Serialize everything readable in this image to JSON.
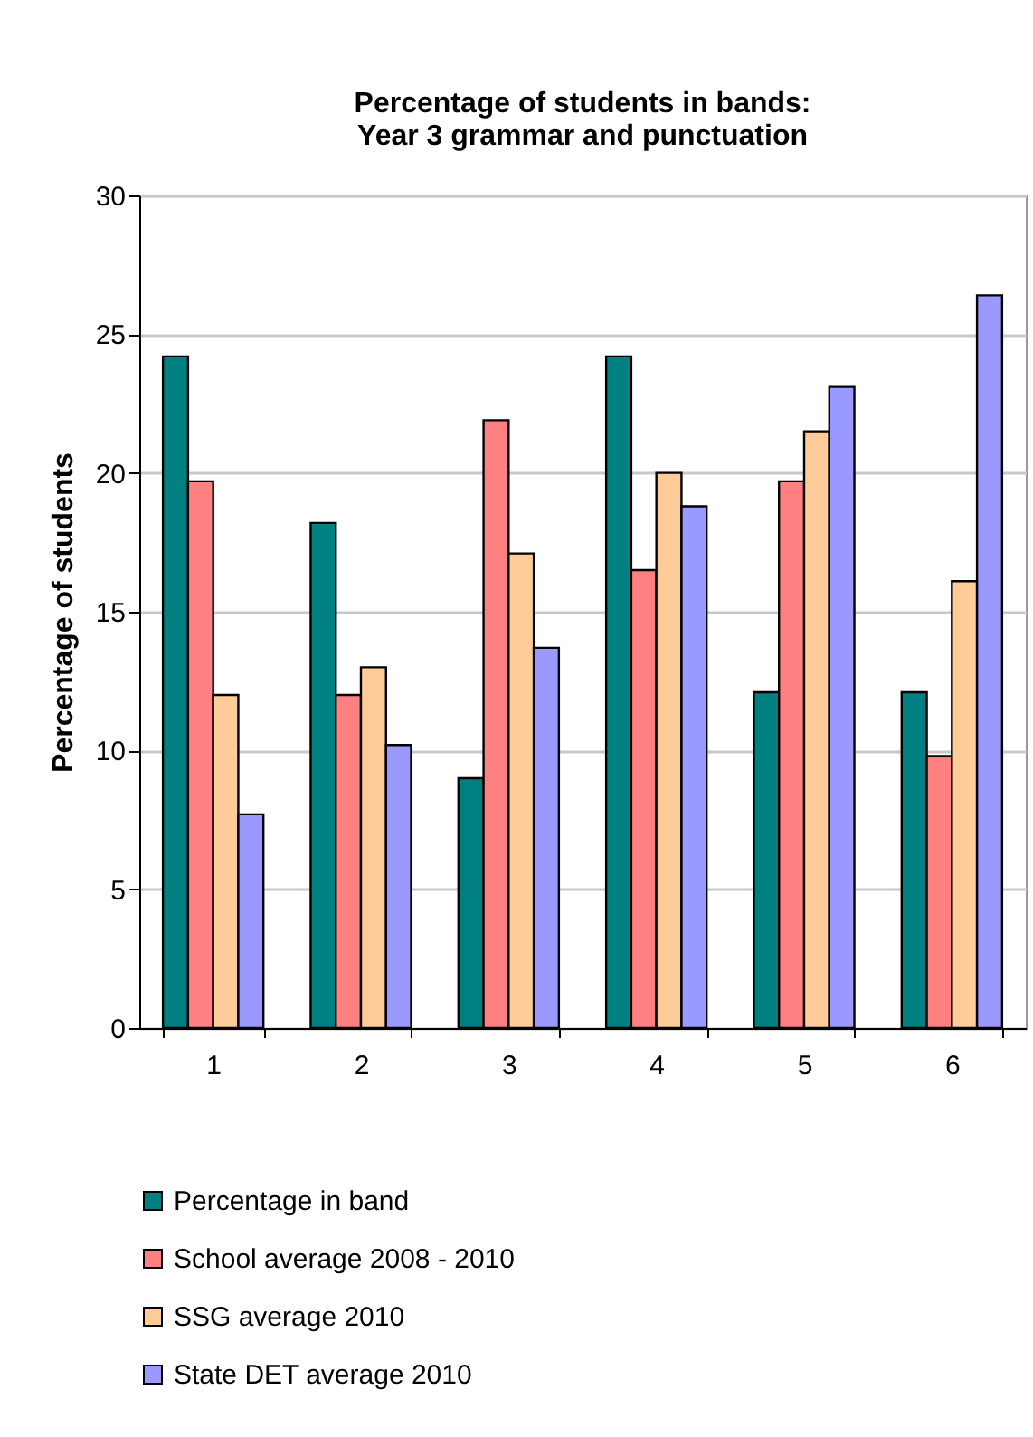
{
  "chart_data": {
    "type": "bar",
    "title": "Percentage of students in bands:\nYear 3 grammar and punctuation",
    "ylabel": "Percentage of students",
    "categories": [
      "1",
      "2",
      "3",
      "4",
      "5",
      "6"
    ],
    "series": [
      {
        "name": "Percentage in band",
        "color": "#008080",
        "values": [
          24.2,
          18.2,
          9.0,
          24.2,
          12.1,
          12.1
        ]
      },
      {
        "name": "School average 2008 - 2010",
        "color": "#ff8080",
        "values": [
          19.7,
          12.0,
          21.9,
          16.5,
          19.7,
          9.8
        ]
      },
      {
        "name": "SSG average 2010",
        "color": "#ffcc99",
        "values": [
          12.0,
          13.0,
          17.1,
          20.0,
          21.5,
          16.1
        ]
      },
      {
        "name": "State DET average 2010",
        "color": "#9999ff",
        "values": [
          7.7,
          10.2,
          13.7,
          18.8,
          23.1,
          26.4
        ]
      }
    ],
    "ylim": [
      0,
      30
    ],
    "yticks": [
      0,
      5,
      10,
      15,
      20,
      25,
      30
    ],
    "grid": "y",
    "legend": "bottom"
  }
}
